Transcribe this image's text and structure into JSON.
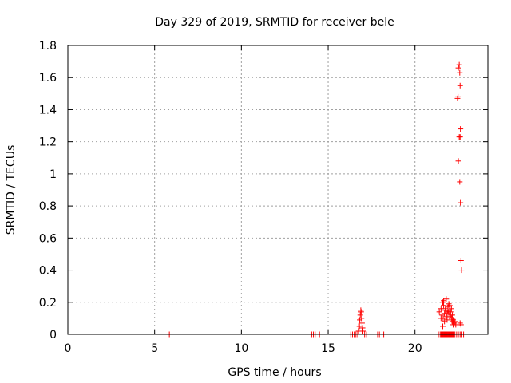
{
  "chart_data": {
    "type": "scatter",
    "title": "Day 329 of 2019, SRMTID for receiver bele",
    "xlabel": "GPS time / hours",
    "ylabel": "SRMTID / TECUs",
    "xlim": [
      0,
      24.2
    ],
    "ylim": [
      0,
      1.8
    ],
    "xticks": [
      0,
      5,
      10,
      15,
      20
    ],
    "xtick_labels": [
      "0",
      "5",
      "10",
      "15",
      "20"
    ],
    "yticks": [
      0,
      0.2,
      0.4,
      0.6,
      0.8,
      1.0,
      1.2,
      1.4,
      1.6,
      1.8
    ],
    "ytick_labels": [
      "0",
      "0.2",
      "0.4",
      "0.6",
      "0.8",
      "1",
      "1.2",
      "1.4",
      "1.6",
      "1.8"
    ],
    "grid": true,
    "marker": "+",
    "color": "#ff0000",
    "series": [
      {
        "x": [
          5.85,
          14.05,
          14.15,
          14.25,
          14.5,
          16.3,
          16.4,
          16.5,
          16.6,
          16.7,
          16.75,
          16.8,
          16.82,
          16.85,
          16.88,
          16.9,
          16.92,
          16.95,
          16.98,
          17.0,
          17.1,
          17.2,
          17.85,
          17.95,
          18.2,
          21.35,
          21.45,
          21.5,
          21.52,
          21.55,
          21.58,
          21.6,
          21.62,
          21.65,
          21.68,
          21.7,
          21.72,
          21.75,
          21.78,
          21.8,
          21.82,
          21.85,
          21.88,
          21.9,
          21.92,
          21.95,
          21.98,
          22.0,
          22.02,
          22.05,
          22.08,
          22.1,
          22.12,
          22.15,
          22.18,
          22.2,
          22.22,
          22.25,
          22.3,
          22.4,
          22.5,
          22.6,
          22.7,
          22.8,
          21.4,
          21.5,
          21.55,
          21.6,
          21.62,
          21.65,
          21.7,
          21.75,
          21.8,
          21.85,
          21.9,
          21.95,
          22.0,
          22.05,
          22.1,
          22.15,
          22.2,
          22.25,
          22.3,
          22.35,
          21.5,
          21.6,
          21.7,
          21.8,
          21.9,
          22.0,
          22.1,
          22.2,
          21.65,
          21.75,
          21.85,
          21.95,
          22.05,
          22.15,
          22.45,
          22.48,
          22.5,
          22.55,
          22.58,
          22.6,
          22.62,
          22.6,
          22.55,
          22.5,
          22.58,
          22.62,
          22.65,
          22.68,
          22.6,
          22.65
        ],
        "y": [
          0,
          0,
          0,
          0,
          0,
          0,
          0,
          0,
          0,
          0,
          0.02,
          0.05,
          0.09,
          0.12,
          0.15,
          0.14,
          0.1,
          0.07,
          0.04,
          0.02,
          0,
          0,
          0,
          0,
          0,
          0,
          0,
          0,
          0,
          0,
          0,
          0,
          0,
          0,
          0,
          0,
          0,
          0,
          0,
          0,
          0,
          0,
          0,
          0,
          0,
          0,
          0,
          0,
          0,
          0,
          0,
          0,
          0,
          0,
          0,
          0,
          0,
          0,
          0,
          0,
          0,
          0,
          0,
          0,
          0.14,
          0.16,
          0.12,
          0.2,
          0.1,
          0.18,
          0.08,
          0.15,
          0.22,
          0.13,
          0.17,
          0.19,
          0.11,
          0.14,
          0.16,
          0.12,
          0.09,
          0.07,
          0.08,
          0.06,
          0.1,
          0.05,
          0.13,
          0.11,
          0.15,
          0.18,
          0.1,
          0.06,
          0.21,
          0.16,
          0.09,
          0.14,
          0.12,
          0.08,
          1.47,
          1.48,
          1.66,
          1.68,
          1.63,
          1.55,
          1.28,
          1.23,
          1.23,
          1.08,
          0.95,
          0.82,
          0.46,
          0.4,
          0.07,
          0.06
        ]
      }
    ]
  }
}
